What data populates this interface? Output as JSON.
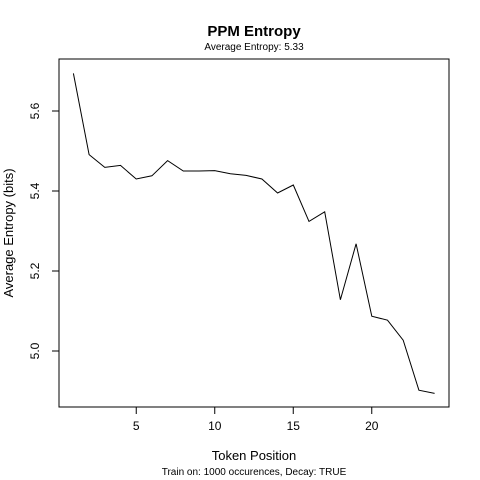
{
  "chart_data": {
    "type": "line",
    "title": "PPM Entropy",
    "subtitle": "Average Entropy: 5.33",
    "xlabel": "Token Position",
    "ylabel": "Average Entropy (bits)",
    "footnote": "Train on: 1000 occurences, Decay: TRUE",
    "xlim": [
      0.08,
      24.92
    ],
    "ylim": [
      4.86,
      5.73
    ],
    "xticks": [
      5,
      10,
      15,
      20
    ],
    "yticks": [
      5.0,
      5.2,
      5.4,
      5.6
    ],
    "xtick_labels": [
      "5",
      "10",
      "15",
      "20"
    ],
    "ytick_labels": [
      "5.0",
      "5.2",
      "5.4",
      "5.6"
    ],
    "grid": false,
    "line_color": "#000000",
    "series": [
      {
        "x": [
          1,
          2,
          3,
          4,
          5,
          6,
          7,
          8,
          9,
          10,
          11,
          12,
          13,
          14,
          15,
          16,
          17,
          18,
          19,
          20,
          21,
          22,
          23,
          24
        ],
        "values": [
          5.694,
          5.491,
          5.459,
          5.464,
          5.43,
          5.438,
          5.476,
          5.45,
          5.45,
          5.451,
          5.443,
          5.439,
          5.43,
          5.395,
          5.415,
          5.324,
          5.348,
          5.128,
          5.268,
          5.087,
          5.077,
          5.027,
          4.902,
          4.894
        ]
      }
    ]
  }
}
